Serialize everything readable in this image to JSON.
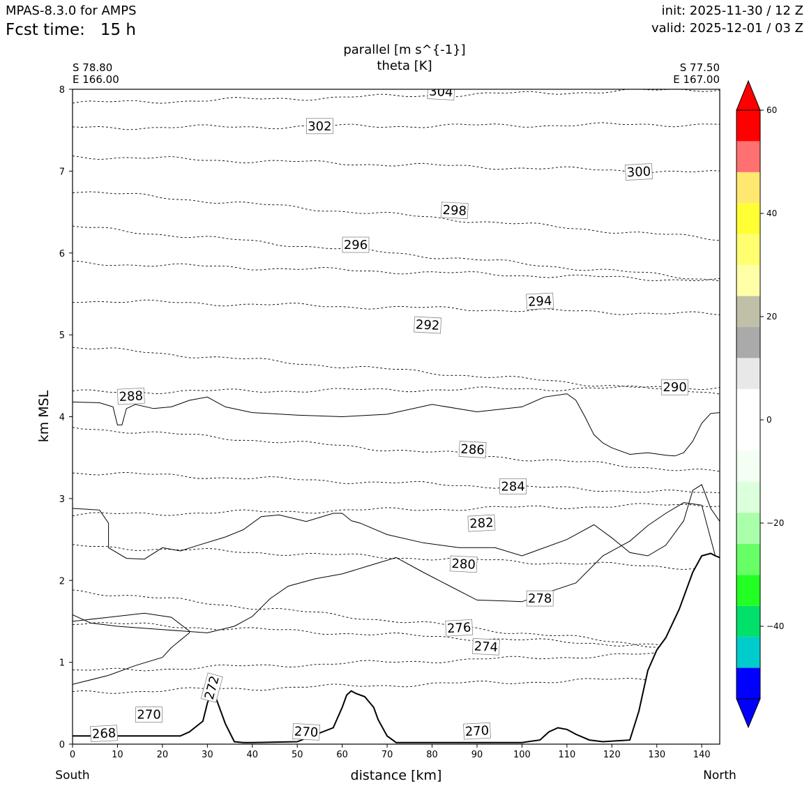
{
  "header": {
    "model": "MPAS-8.3.0 for AMPS",
    "fcst_label": "Fcst time:",
    "fcst_value": "15 h",
    "init": "init: 2025-11-30 / 12 Z",
    "valid": "valid: 2025-12-01 / 03 Z"
  },
  "title": {
    "line1": "parallel [m s^{-1}]",
    "line2": "theta [K]"
  },
  "endpoints": {
    "left_lat": "S 78.80",
    "left_lon": "E 166.00",
    "right_lat": "S 77.50",
    "right_lon": "E 167.00",
    "left_label": "South",
    "right_label": "North"
  },
  "chart_data": {
    "type": "contour",
    "xlabel": "distance [km]",
    "ylabel": "km MSL",
    "xlim": [
      0,
      144
    ],
    "ylim": [
      0,
      8
    ],
    "xticks": [
      "0",
      "10",
      "20",
      "30",
      "40",
      "50",
      "60",
      "70",
      "80",
      "90",
      "100",
      "110",
      "120",
      "130",
      "140"
    ],
    "yticks": [
      "0",
      "1",
      "2",
      "3",
      "4",
      "5",
      "6",
      "7",
      "8"
    ],
    "theta_contour_labels": [
      {
        "label": "268",
        "x": 7,
        "y": 0.13
      },
      {
        "label": "270",
        "x": 17,
        "y": 0.36
      },
      {
        "label": "270",
        "x": 52,
        "y": 0.15
      },
      {
        "label": "270",
        "x": 90,
        "y": 0.16
      },
      {
        "label": "272",
        "x": 31,
        "y": 0.69
      },
      {
        "label": "274",
        "x": 92,
        "y": 1.19
      },
      {
        "label": "276",
        "x": 86,
        "y": 1.42
      },
      {
        "label": "278",
        "x": 104,
        "y": 1.78
      },
      {
        "label": "280",
        "x": 87,
        "y": 2.2
      },
      {
        "label": "282",
        "x": 91,
        "y": 2.7
      },
      {
        "label": "284",
        "x": 98,
        "y": 3.15
      },
      {
        "label": "286",
        "x": 89,
        "y": 3.6
      },
      {
        "label": "288",
        "x": 13,
        "y": 4.25
      },
      {
        "label": "290",
        "x": 134,
        "y": 4.36
      },
      {
        "label": "292",
        "x": 79,
        "y": 5.12
      },
      {
        "label": "294",
        "x": 104,
        "y": 5.41
      },
      {
        "label": "296",
        "x": 63,
        "y": 6.1
      },
      {
        "label": "298",
        "x": 85,
        "y": 6.52
      },
      {
        "label": "300",
        "x": 126,
        "y": 6.99
      },
      {
        "label": "302",
        "x": 55,
        "y": 7.55
      },
      {
        "label": "304",
        "x": 82,
        "y": 7.97
      }
    ],
    "terrain_profile": {
      "x": [
        0,
        24,
        26,
        29,
        30,
        31,
        32,
        34,
        36,
        38,
        40,
        50,
        58,
        60,
        61,
        62,
        63,
        65,
        67,
        68,
        70,
        72,
        74,
        100,
        104,
        106,
        108,
        110,
        112,
        115,
        118,
        124,
        126,
        128,
        130,
        132,
        135,
        138,
        140,
        142,
        143,
        144
      ],
      "y": [
        0.1,
        0.1,
        0.15,
        0.28,
        0.5,
        0.65,
        0.55,
        0.25,
        0.03,
        0.02,
        0.02,
        0.03,
        0.2,
        0.45,
        0.6,
        0.65,
        0.62,
        0.58,
        0.45,
        0.3,
        0.1,
        0.02,
        0.02,
        0.02,
        0.05,
        0.15,
        0.2,
        0.18,
        0.12,
        0.05,
        0.03,
        0.05,
        0.4,
        0.9,
        1.15,
        1.3,
        1.65,
        2.1,
        2.3,
        2.33,
        2.3,
        2.28
      ]
    },
    "colorbar": {
      "ticks": [
        "60",
        "40",
        "20",
        "0",
        "−20",
        "−40"
      ],
      "colors": [
        "#0000ff",
        "#00cccc",
        "#00e06a",
        "#22ff22",
        "#66ff66",
        "#aaffaa",
        "#dcffdc",
        "#f2fff2",
        "#ffffff",
        "#ffffff",
        "#e8e8e8",
        "#aaaaaa",
        "#c0c0a8",
        "#ffffa8",
        "#ffff70",
        "#ffff33",
        "#ffe870",
        "#ff7070",
        "#ff0000"
      ],
      "top_arrow_color": "#ff0000",
      "bottom_arrow_color": "#0000ff"
    }
  }
}
